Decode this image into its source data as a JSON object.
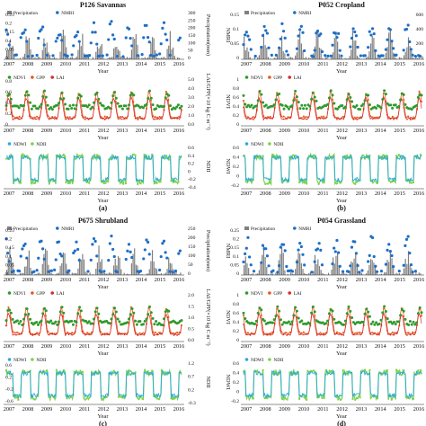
{
  "figure": {
    "panels": [
      {
        "id": "a",
        "title": "P126 Savannas",
        "caption": "(a)",
        "side": "left",
        "top": {
          "legend": [
            "Precipitation",
            "NMRI"
          ],
          "left_ticks": [
            "0.25",
            "0.2",
            "0.15",
            "0.1",
            "0.05",
            "0"
          ],
          "right_ticks": [
            "300",
            "250",
            "200",
            "150",
            "100",
            "50",
            "0"
          ],
          "right_label": "Precipitation(mm)"
        },
        "middle": {
          "legend": [
            "NDVI",
            "GPP",
            "LAI"
          ],
          "left_ticks": [
            "0.8",
            "0.6",
            "0.4",
            "0.2",
            "0"
          ],
          "right_ticks": [
            "5.0",
            "4.0",
            "3.0",
            "2.0",
            "1.0",
            "0.0"
          ],
          "right_label": "LAI/GPP(×10 kg C m⁻²)"
        },
        "bottom": {
          "legend": [
            "NDWI",
            "NDII"
          ],
          "left_ticks": [],
          "right_ticks": [
            "0.6",
            "0.4",
            "0.2",
            "0",
            "-0.2",
            "-0.4"
          ],
          "right_label": "NDII"
        }
      },
      {
        "id": "b",
        "title": "P052 Cropland",
        "caption": "(b)",
        "side": "right",
        "top": {
          "legend": [
            "Precipitation",
            "NMRI"
          ],
          "left_ticks": [
            "0.15",
            "0.1",
            "0.05",
            "0"
          ],
          "left_label": "NMRI",
          "right_ticks": [
            "600",
            "400",
            "200",
            "0"
          ],
          "right_label": "Precipitation(mm)"
        },
        "middle": {
          "legend": [
            "NDVI",
            "GPP",
            "LAI"
          ],
          "left_ticks": [
            "1",
            "0.8",
            "0.6",
            "0.4",
            "0.2",
            "0"
          ],
          "left_label": "NDVI",
          "right_ticks": [],
          "right_label": ""
        },
        "bottom": {
          "legend": [
            "NDWI",
            "NDII"
          ],
          "left_ticks": [
            "0.6",
            "0.4",
            "0.2",
            "0",
            "-0.2"
          ],
          "left_label": "NDWI",
          "right_ticks": [],
          "right_label": ""
        }
      },
      {
        "id": "c",
        "title": "P675 Shrubland",
        "caption": "(c)",
        "side": "left",
        "top": {
          "legend": [
            "Precipitation",
            "NMRI"
          ],
          "left_ticks": [
            "0.25",
            "0.2",
            "0.15",
            "0.1",
            "0.05",
            "0"
          ],
          "right_ticks": [
            "250",
            "200",
            "150",
            "100",
            "50",
            "0"
          ],
          "right_label": "Precipitation(mm)"
        },
        "middle": {
          "legend": [
            "NDVI",
            "GPP",
            "LAI"
          ],
          "left_ticks": [],
          "right_ticks": [
            "2.0",
            "1.5",
            "1.0",
            "0.5",
            "0.0"
          ],
          "right_label": "LAI/GPP(×10 kg C m⁻²)"
        },
        "bottom": {
          "legend": [
            "NDWI",
            "NDII"
          ],
          "left_ticks": [
            "0.6",
            "0.2",
            "-0.2",
            "-0.6"
          ],
          "right_ticks": [
            "1.2",
            "0.7",
            "0.2",
            "-0.3"
          ],
          "right_label": "NDII"
        }
      },
      {
        "id": "d",
        "title": "P054 Grassland",
        "caption": "(d)",
        "side": "right",
        "top": {
          "legend": [
            "Precipitation",
            "NMRI"
          ],
          "left_ticks": [
            "0.25",
            "0.2",
            "0.15",
            "0.1",
            "0.05",
            "0"
          ],
          "left_label": "NMRI",
          "right_ticks": [],
          "right_label": ""
        },
        "middle": {
          "legend": [
            "NDVI",
            "GPP",
            "LAI"
          ],
          "left_ticks": [
            "1",
            "0.8",
            "0.6",
            "0.4",
            "0.2",
            "0"
          ],
          "left_label": "NDVI",
          "right_ticks": [],
          "right_label": ""
        },
        "bottom": {
          "legend": [
            "NDWI",
            "NDII"
          ],
          "left_ticks": [
            "0.6",
            "0.4",
            "0.2",
            "0",
            "-0.2"
          ],
          "left_label": "NDWI",
          "right_ticks": [],
          "right_label": ""
        }
      }
    ],
    "years": [
      "2007",
      "2008",
      "2009",
      "2010",
      "2011",
      "2012",
      "2013",
      "2014",
      "2015",
      "2016"
    ],
    "xlabel": "Year",
    "colors": {
      "precipitation": "#808080",
      "nmri": "#1f6fc6",
      "ndvi": "#2e9a2e",
      "gpp": "#e8591a",
      "lai": "#d42a2a",
      "ndwi": "#29a8e0",
      "ndii": "#7bd24a",
      "axis": "#222222"
    }
  },
  "chart_data": [
    {
      "type": "line",
      "panel": "a",
      "title": "P126 Savannas",
      "xlabel": "Year",
      "x": [
        "2007",
        "2008",
        "2009",
        "2010",
        "2011",
        "2012",
        "2013",
        "2014",
        "2015",
        "2016"
      ],
      "series": [
        {
          "name": "Precipitation"
        },
        {
          "name": "NMRI"
        },
        {
          "name": "NDVI"
        },
        {
          "name": "GPP"
        },
        {
          "name": "LAI"
        },
        {
          "name": "NDWI"
        },
        {
          "name": "NDII"
        }
      ],
      "note_values": "seasonal cycles, one peak per year",
      "ylim_top_left": [
        0,
        0.25
      ],
      "ylim_top_right": [
        0,
        300
      ],
      "ylim_middle_right": [
        0,
        5
      ],
      "ylim_bottom_right": [
        -0.4,
        0.6
      ]
    },
    {
      "type": "line",
      "panel": "b",
      "title": "P052 Cropland",
      "xlabel": "Year",
      "x": [
        "2007",
        "2008",
        "2009",
        "2010",
        "2011",
        "2012",
        "2013",
        "2014",
        "2015",
        "2016"
      ],
      "series": [
        {
          "name": "Precipitation"
        },
        {
          "name": "NMRI"
        },
        {
          "name": "NDVI"
        },
        {
          "name": "GPP"
        },
        {
          "name": "LAI"
        },
        {
          "name": "NDWI"
        },
        {
          "name": "NDII"
        }
      ],
      "ylim_top_left": [
        0,
        0.15
      ],
      "ylim_top_right": [
        0,
        600
      ],
      "ylim_middle_left": [
        0,
        1
      ],
      "ylim_bottom_left": [
        -0.2,
        0.6
      ]
    },
    {
      "type": "line",
      "panel": "c",
      "title": "P675 Shrubland",
      "xlabel": "Year",
      "x": [
        "2007",
        "2008",
        "2009",
        "2010",
        "2011",
        "2012",
        "2013",
        "2014",
        "2015",
        "2016"
      ],
      "series": [
        {
          "name": "Precipitation"
        },
        {
          "name": "NMRI"
        },
        {
          "name": "NDVI"
        },
        {
          "name": "GPP"
        },
        {
          "name": "LAI"
        },
        {
          "name": "NDWI"
        },
        {
          "name": "NDII"
        }
      ],
      "ylim_top_left": [
        0,
        0.25
      ],
      "ylim_top_right": [
        0,
        250
      ],
      "ylim_middle_right": [
        0,
        2
      ],
      "ylim_bottom_left": [
        -0.6,
        0.6
      ],
      "ylim_bottom_right": [
        -0.3,
        1.2
      ]
    },
    {
      "type": "line",
      "panel": "d",
      "title": "P054 Grassland",
      "xlabel": "Year",
      "x": [
        "2007",
        "2008",
        "2009",
        "2010",
        "2011",
        "2012",
        "2013",
        "2014",
        "2015",
        "2016"
      ],
      "series": [
        {
          "name": "Precipitation"
        },
        {
          "name": "NMRI"
        },
        {
          "name": "NDVI"
        },
        {
          "name": "GPP"
        },
        {
          "name": "LAI"
        },
        {
          "name": "NDWI"
        },
        {
          "name": "NDII"
        }
      ],
      "ylim_top_left": [
        0,
        0.25
      ],
      "ylim_middle_left": [
        0,
        1
      ],
      "ylim_bottom_left": [
        -0.2,
        0.6
      ]
    }
  ]
}
